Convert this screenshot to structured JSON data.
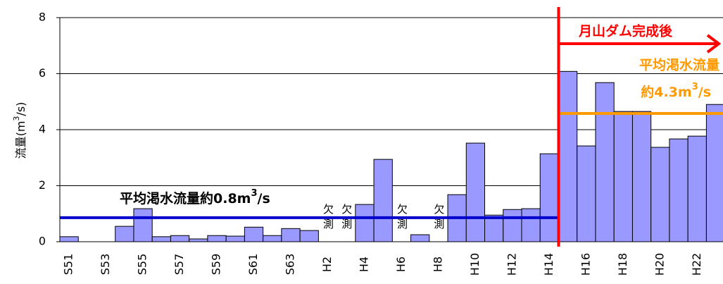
{
  "chart_data": {
    "type": "bar",
    "y_label": [
      "流量(m",
      "3",
      "/s)"
    ],
    "categories": [
      "S51",
      null,
      "S53",
      null,
      "S55",
      null,
      "S57",
      null,
      "S59",
      null,
      "S61",
      null,
      "S63",
      null,
      "H2",
      null,
      "H4",
      null,
      "H6",
      null,
      "H8",
      null,
      "H10",
      null,
      "H12",
      null,
      "H14",
      null,
      "H16",
      null,
      "H18",
      null,
      "H20",
      null,
      "H22",
      null
    ],
    "values": [
      0.18,
      0,
      0,
      0.55,
      1.18,
      0.18,
      0.22,
      0.1,
      0.22,
      0.2,
      0.52,
      0.22,
      0.47,
      0.4,
      null,
      null,
      1.33,
      2.94,
      null,
      0.25,
      null,
      1.68,
      3.52,
      0.95,
      1.15,
      1.18,
      3.14,
      6.08,
      3.42,
      5.68,
      4.65,
      4.65,
      3.37,
      3.67,
      3.77,
      4.9
    ],
    "color": "#9999ff",
    "missing_label": "欠測",
    "ylim": [
      0,
      8
    ],
    "yticks": [
      0,
      2,
      4,
      6,
      8
    ],
    "grid": true,
    "dam_annotation": "月山ダム完成後",
    "dam_color": "#ff0000",
    "before_average": {
      "value": 0.86,
      "color": "#0000cc",
      "label": [
        "平均渇水流量約0.8m",
        "3",
        "/s"
      ]
    },
    "after_average": {
      "value": 4.58,
      "color": "#ff9900",
      "label_line1": "平均渇水流量",
      "label_line2": [
        "約4.3m",
        "3",
        "/s"
      ]
    }
  }
}
